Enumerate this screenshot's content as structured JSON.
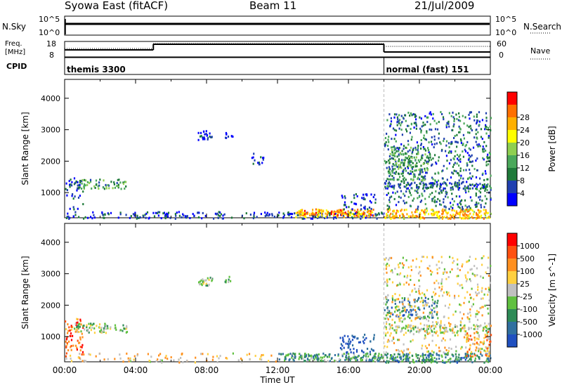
{
  "header": {
    "title": "Syowa East (fitACF)",
    "beam": "Beam 11",
    "date": "21/Jul/2009"
  },
  "top_panels": {
    "nsky_label": "N.Sky",
    "nsky_ticks": [
      "10^5",
      "10^0"
    ],
    "nsearch_label": "N.Search",
    "nsearch_ticks": [
      "10^5",
      "10^0"
    ],
    "freq_label_1": "Freq.",
    "freq_label_2": "[MHz]",
    "freq_ticks": [
      "18",
      "8"
    ],
    "nave_label": "Nave",
    "nave_ticks": [
      "60",
      "0"
    ],
    "cpid_label": "CPID",
    "cpid_segments": [
      {
        "start_hour": 0.0,
        "label": "themis 3300"
      },
      {
        "start_hour": 18.0,
        "label": "normal (fast) 151"
      }
    ],
    "freq_steps": [
      {
        "from": 0.0,
        "to": 5.0,
        "level": 0.45
      },
      {
        "from": 5.0,
        "to": 18.0,
        "level": 0.85
      },
      {
        "from": 18.0,
        "to": 24.0,
        "level": 0.3
      }
    ],
    "nave_steps": [
      {
        "from": 0.0,
        "to": 5.0,
        "level": 0.55
      },
      {
        "from": 5.0,
        "to": 18.0,
        "level": 0.9
      },
      {
        "from": 18.0,
        "to": 24.0,
        "level": 0.7
      }
    ]
  },
  "chart_data": [
    {
      "type": "heatmap",
      "name": "power",
      "xlabel": "",
      "ylabel": "Slant Range [km]",
      "xlim": [
        0,
        24
      ],
      "ylim": [
        200,
        4600
      ],
      "yticks": [
        "1000",
        "2000",
        "3000",
        "4000"
      ],
      "colorbar_label": "Power [dB]",
      "colorbar_ticks": [
        "4",
        "8",
        "12",
        "16",
        "20",
        "24",
        "28"
      ],
      "colorbar_colors": [
        "#0000ff",
        "#2040b0",
        "#1f7a3a",
        "#4aa85a",
        "#8fcf50",
        "#ffff00",
        "#ffb000",
        "#ff7000",
        "#ff0000"
      ],
      "patches": [
        {
          "x": [
            0.0,
            18.0
          ],
          "y": [
            200,
            420
          ],
          "v": 0.15,
          "density": 0.35
        },
        {
          "x": [
            13.0,
            17.5
          ],
          "y": [
            250,
            500
          ],
          "v": 0.75,
          "density": 0.75
        },
        {
          "x": [
            0.5,
            3.5
          ],
          "y": [
            1150,
            1450
          ],
          "v": 0.35,
          "density": 0.45
        },
        {
          "x": [
            0.0,
            1.0
          ],
          "y": [
            500,
            1500
          ],
          "v": 0.15,
          "density": 0.2
        },
        {
          "x": [
            7.5,
            8.3
          ],
          "y": [
            2700,
            3000
          ],
          "v": 0.1,
          "density": 0.6
        },
        {
          "x": [
            9.0,
            9.5
          ],
          "y": [
            2750,
            2950
          ],
          "v": 0.1,
          "density": 0.55
        },
        {
          "x": [
            15.5,
            17.5
          ],
          "y": [
            500,
            1000
          ],
          "v": 0.15,
          "density": 0.25
        },
        {
          "x": [
            18.0,
            24.0
          ],
          "y": [
            200,
            500
          ],
          "v": 0.7,
          "density": 0.7
        },
        {
          "x": [
            18.0,
            24.0
          ],
          "y": [
            500,
            3600
          ],
          "v": 0.25,
          "density": 0.22
        },
        {
          "x": [
            18.0,
            24.0
          ],
          "y": [
            1150,
            1350
          ],
          "v": 0.2,
          "density": 0.5
        },
        {
          "x": [
            18.2,
            20.5
          ],
          "y": [
            1400,
            2500
          ],
          "v": 0.35,
          "density": 0.35
        },
        {
          "x": [
            10.5,
            11.2
          ],
          "y": [
            1900,
            2300
          ],
          "v": 0.1,
          "density": 0.3
        }
      ]
    },
    {
      "type": "heatmap",
      "name": "velocity",
      "xlabel": "Time UT",
      "ylabel": "Slant Range [km]",
      "xlim": [
        0,
        24
      ],
      "ylim": [
        200,
        4600
      ],
      "xticks": [
        "00:00",
        "04:00",
        "08:00",
        "12:00",
        "16:00",
        "20:00",
        "00:00"
      ],
      "yticks": [
        "1000",
        "2000",
        "3000",
        "4000"
      ],
      "colorbar_label": "Velocity [m s^-1]",
      "colorbar_ticks": [
        "1000",
        "500",
        "100",
        "25",
        "-25",
        "-100",
        "-500",
        "-1000"
      ],
      "colorbar_colors": [
        "#2050c0",
        "#3070a0",
        "#2e8b57",
        "#60c040",
        "#c0c0c0",
        "#ffd040",
        "#ff9020",
        "#ff5010",
        "#ff0000"
      ],
      "patches": [
        {
          "x": [
            0.0,
            1.0
          ],
          "y": [
            400,
            1600
          ],
          "v": 0.8,
          "density": 0.3
        },
        {
          "x": [
            0.5,
            3.5
          ],
          "y": [
            1150,
            1450
          ],
          "v": 0.45,
          "density": 0.5
        },
        {
          "x": [
            0.0,
            12.0
          ],
          "y": [
            200,
            500
          ],
          "v": 0.6,
          "density": 0.15
        },
        {
          "x": [
            12.0,
            18.0
          ],
          "y": [
            250,
            500
          ],
          "v": 0.3,
          "density": 0.7
        },
        {
          "x": [
            7.5,
            8.3
          ],
          "y": [
            2650,
            3000
          ],
          "v": 0.45,
          "density": 0.55
        },
        {
          "x": [
            9.0,
            9.5
          ],
          "y": [
            2750,
            2950
          ],
          "v": 0.45,
          "density": 0.5
        },
        {
          "x": [
            15.5,
            17.5
          ],
          "y": [
            500,
            1100
          ],
          "v": 0.05,
          "density": 0.3
        },
        {
          "x": [
            18.0,
            24.0
          ],
          "y": [
            200,
            500
          ],
          "v": 0.25,
          "density": 0.65
        },
        {
          "x": [
            18.0,
            24.0
          ],
          "y": [
            1150,
            1400
          ],
          "v": 0.45,
          "density": 0.5
        },
        {
          "x": [
            18.0,
            21.0
          ],
          "y": [
            1600,
            2300
          ],
          "v": 0.2,
          "density": 0.3
        },
        {
          "x": [
            18.0,
            24.0
          ],
          "y": [
            500,
            3600
          ],
          "v": 0.55,
          "density": 0.15
        },
        {
          "x": [
            22.5,
            24.0
          ],
          "y": [
            400,
            1200
          ],
          "v": 0.7,
          "density": 0.3
        }
      ]
    }
  ]
}
